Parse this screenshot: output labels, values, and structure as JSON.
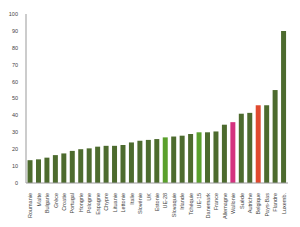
{
  "chart_data": {
    "type": "bar",
    "categories": [
      "Roumanie",
      "Malte",
      "Bulgarie",
      "Grèce",
      "Croatie",
      "Portugal",
      "Hongrie",
      "Pologne",
      "Espagne",
      "Chypre",
      "Lituanie",
      "Lettonie",
      "Italie",
      "Slovénie",
      "UK",
      "Estonie",
      "UE-28",
      "Slovaquie",
      "Irlande",
      "Tchéquie",
      "UE-15",
      "Danemark",
      "France",
      "Allemagne",
      "Wallonie",
      "Suède",
      "Autriche",
      "Belgique",
      "Pays-Bas",
      "Flandre",
      "Luxemb."
    ],
    "values": [
      13.5,
      14,
      15,
      16.5,
      17.5,
      19,
      20,
      20.5,
      21.5,
      22,
      22,
      22.5,
      24,
      25,
      25.5,
      26,
      27,
      27.5,
      28,
      29,
      30,
      30,
      30.5,
      34.5,
      36,
      41,
      41.5,
      46,
      46,
      55,
      90
    ],
    "colors": [
      "#4d6b2e",
      "#4d6b2e",
      "#4d6b2e",
      "#4d6b2e",
      "#4d6b2e",
      "#4d6b2e",
      "#4d6b2e",
      "#4d6b2e",
      "#4d6b2e",
      "#4d6b2e",
      "#4d6b2e",
      "#4d6b2e",
      "#4d6b2e",
      "#4d6b2e",
      "#4d6b2e",
      "#4d6b2e",
      "#5aa02c",
      "#4d6b2e",
      "#4d6b2e",
      "#4d6b2e",
      "#5aa02c",
      "#4d6b2e",
      "#4d6b2e",
      "#4d6b2e",
      "#d4327f",
      "#4d6b2e",
      "#4d6b2e",
      "#e04a2f",
      "#4d6b2e",
      "#4d6b2e",
      "#4d6b2e"
    ],
    "ylim": [
      0,
      100
    ],
    "yticks": [
      0,
      10,
      20,
      30,
      40,
      50,
      60,
      70,
      80,
      90,
      100
    ],
    "grid": false
  }
}
